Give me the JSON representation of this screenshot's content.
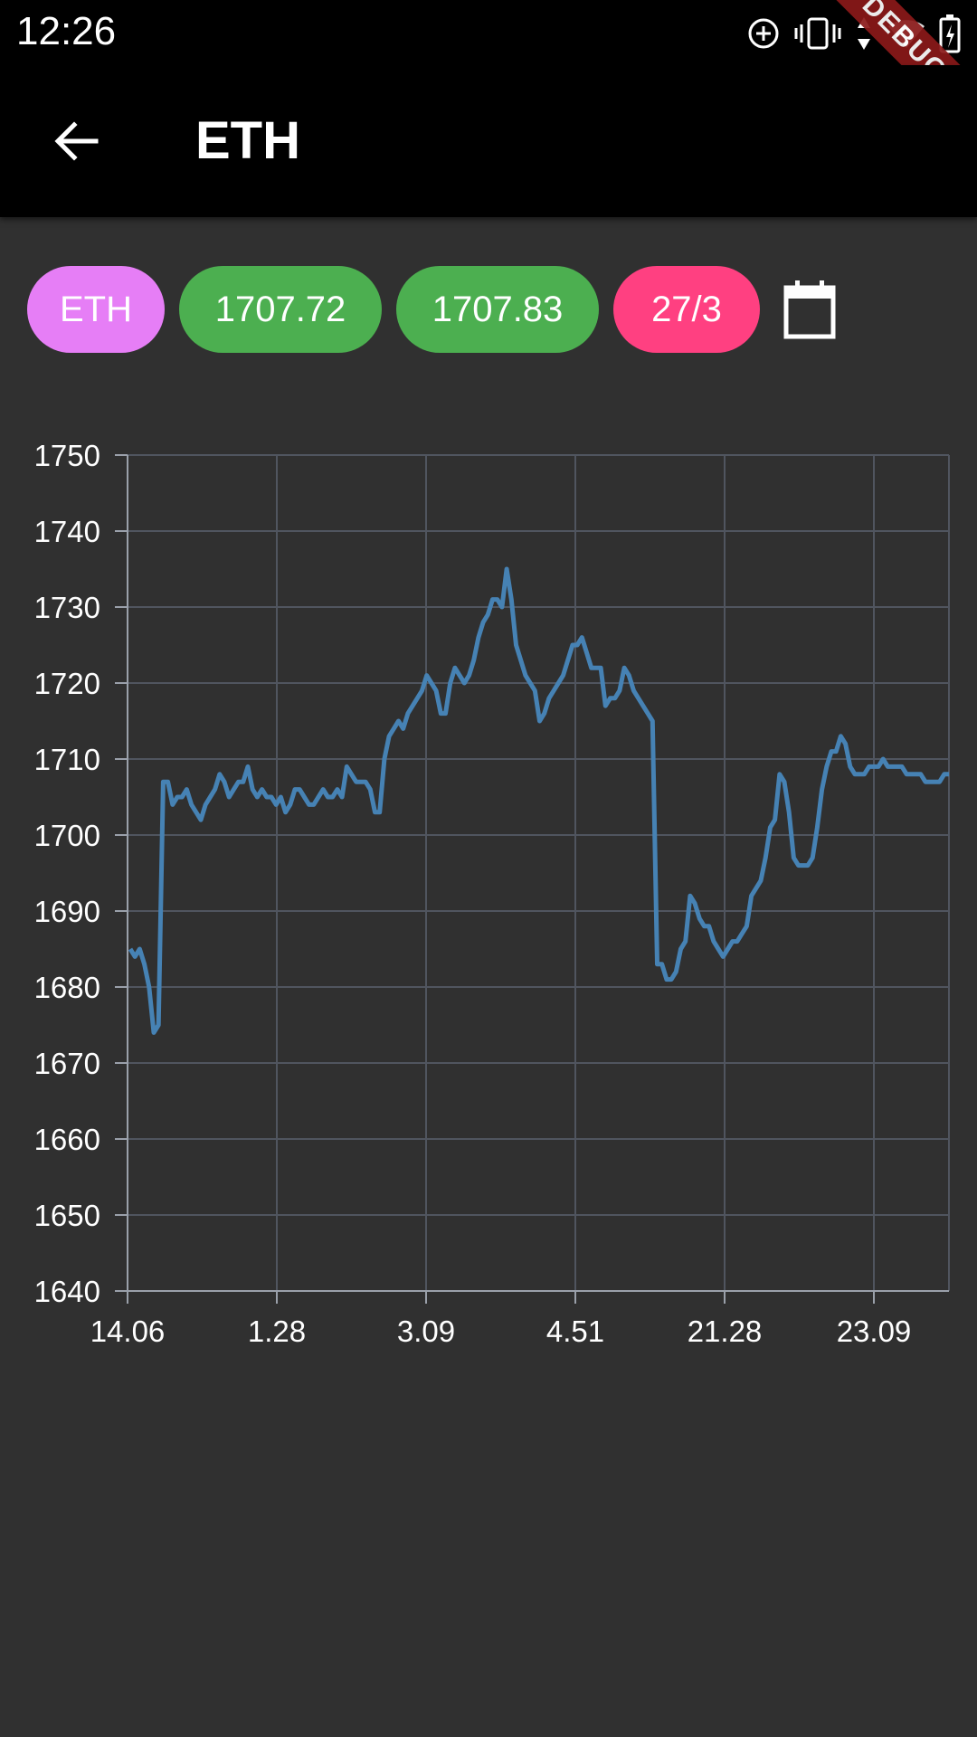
{
  "status_bar": {
    "time": "12:26",
    "icons": [
      "sync-icon",
      "vibrate-icon",
      "data-arrows-icon",
      "wifi-icon",
      "battery-charging-icon"
    ],
    "debug_label": "DEBUG"
  },
  "app_bar": {
    "title": "ETH",
    "back_icon": "arrow-back-icon"
  },
  "chips": {
    "symbol": "ETH",
    "price_1": "1707.72",
    "price_2": "1707.83",
    "date": "27/3",
    "calendar_icon": "calendar-icon"
  },
  "colors": {
    "background": "#303030",
    "bar": "#000000",
    "chip_symbol": "#e67ef6",
    "chip_price": "#4caf50",
    "chip_date": "#ff4081",
    "line": "#4682b4",
    "grid": "#50555f"
  },
  "chart_data": {
    "type": "line",
    "title": "",
    "xlabel": "",
    "ylabel": "",
    "ylim": [
      1640,
      1750
    ],
    "yticks": [
      "1640",
      "1650",
      "1660",
      "1670",
      "1680",
      "1690",
      "1700",
      "1710",
      "1720",
      "1730",
      "1740",
      "1750"
    ],
    "xticks": [
      "14.06",
      "1.28",
      "3.09",
      "4.51",
      "21.28",
      "23.09"
    ],
    "grid": true,
    "series": [
      {
        "values": [
          1685,
          1684,
          1685,
          1683,
          1680,
          1674,
          1675,
          1707,
          1707,
          1704,
          1705,
          1705,
          1706,
          1704,
          1703,
          1702,
          1704,
          1705,
          1706,
          1708,
          1707,
          1705,
          1706,
          1707,
          1707,
          1709,
          1706,
          1705,
          1706,
          1705,
          1705,
          1704,
          1705,
          1703,
          1704,
          1706,
          1706,
          1705,
          1704,
          1704,
          1705,
          1706,
          1705,
          1705,
          1706,
          1705,
          1709,
          1708,
          1707,
          1707,
          1707,
          1706,
          1703,
          1703,
          1710,
          1713,
          1714,
          1715,
          1714,
          1716,
          1717,
          1718,
          1719,
          1721,
          1720,
          1719,
          1716,
          1716,
          1720,
          1722,
          1721,
          1720,
          1721,
          1723,
          1726,
          1728,
          1729,
          1731,
          1731,
          1730,
          1735,
          1731,
          1725,
          1723,
          1721,
          1720,
          1719,
          1715,
          1716,
          1718,
          1719,
          1720,
          1721,
          1723,
          1725,
          1725,
          1726,
          1724,
          1722,
          1722,
          1722,
          1717,
          1718,
          1718,
          1719,
          1722,
          1721,
          1719,
          1718,
          1717,
          1716,
          1715,
          1683,
          1683,
          1681,
          1681,
          1682,
          1685,
          1686,
          1692,
          1691,
          1689,
          1688,
          1688,
          1686,
          1685,
          1684,
          1685,
          1686,
          1686,
          1687,
          1688,
          1692,
          1693,
          1694,
          1697,
          1701,
          1702,
          1708,
          1707,
          1703,
          1697,
          1696,
          1696,
          1696,
          1697,
          1701,
          1706,
          1709,
          1711,
          1711,
          1713,
          1712,
          1709,
          1708,
          1708,
          1708,
          1709,
          1709,
          1709,
          1710,
          1709,
          1709,
          1709,
          1709,
          1708,
          1708,
          1708,
          1708,
          1707,
          1707,
          1707,
          1707,
          1708,
          1708
        ]
      }
    ]
  }
}
